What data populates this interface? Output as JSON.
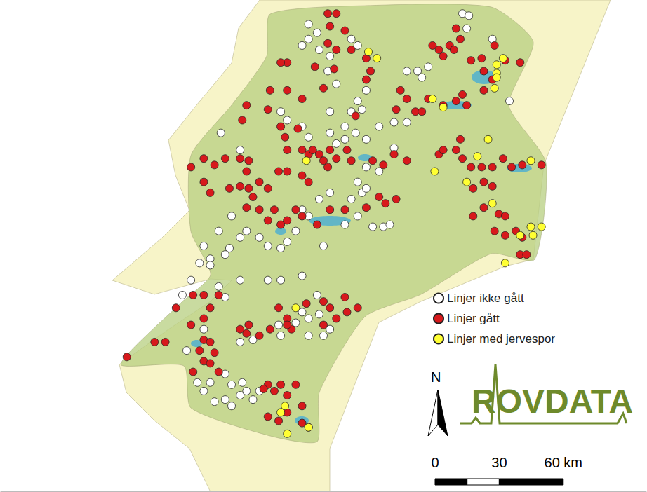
{
  "chart_data": {
    "type": "scatter",
    "marker": "circle",
    "legend": "right",
    "tick_labels": false,
    "xlim": [
      0,
      302
    ],
    "ylim": [
      0,
      230
    ],
    "north_label": "N",
    "logo": "ROVDATA",
    "scale_bar": {
      "ticks": [
        {
          "value": 0,
          "label": "0"
        },
        {
          "value": 30,
          "label": "30"
        },
        {
          "value": 60,
          "label": "60 km"
        }
      ]
    },
    "series": [
      {
        "name": "Linjer ikke gått",
        "color": "#ffffff",
        "values": [
          [
            144,
            219
          ],
          [
            148,
            215
          ],
          [
            141,
            209
          ],
          [
            149,
            207
          ],
          [
            144,
            212
          ],
          [
            164,
            212
          ],
          [
            167,
            209
          ],
          [
            154,
            204
          ],
          [
            153,
            197
          ],
          [
            157,
            191
          ],
          [
            171,
            188
          ],
          [
            167,
            183
          ],
          [
            169,
            179
          ],
          [
            164,
            178
          ],
          [
            154,
            178
          ],
          [
            161,
            171
          ],
          [
            166,
            168
          ],
          [
            161,
            165
          ],
          [
            171,
            165
          ],
          [
            177,
            171
          ],
          [
            184,
            173
          ],
          [
            190,
            173
          ],
          [
            184,
            161
          ],
          [
            177,
            150
          ],
          [
            171,
            152
          ],
          [
            167,
            145
          ],
          [
            169,
            140
          ],
          [
            164,
            137
          ],
          [
            154,
            140
          ],
          [
            149,
            137
          ],
          [
            141,
            132
          ],
          [
            144,
            129
          ],
          [
            138,
            122
          ],
          [
            134,
            117
          ],
          [
            131,
            114
          ],
          [
            125,
            115
          ],
          [
            121,
            119
          ],
          [
            115,
            122
          ],
          [
            112,
            119
          ],
          [
            107,
            114
          ],
          [
            105,
            111
          ],
          [
            98,
            109
          ],
          [
            93,
            107
          ],
          [
            98,
            106
          ],
          [
            108,
            129
          ],
          [
            102,
            122
          ],
          [
            95,
            115
          ],
          [
            131,
            99
          ],
          [
            125,
            99
          ],
          [
            112,
            99
          ],
          [
            105,
            91
          ],
          [
            102,
            96
          ],
          [
            89,
            99
          ],
          [
            85,
            92
          ],
          [
            141,
            101
          ],
          [
            148,
            92
          ],
          [
            141,
            84
          ],
          [
            138,
            79
          ],
          [
            144,
            81
          ],
          [
            149,
            83
          ],
          [
            154,
            76
          ],
          [
            151,
            73
          ],
          [
            144,
            73
          ],
          [
            131,
            73
          ],
          [
            130,
            78
          ],
          [
            118,
            71
          ],
          [
            112,
            70
          ],
          [
            95,
            76
          ],
          [
            87,
            66
          ],
          [
            92,
            51
          ],
          [
            98,
            51
          ],
          [
            95,
            47
          ],
          [
            105,
            55
          ],
          [
            108,
            50
          ],
          [
            113,
            51
          ],
          [
            100,
            42
          ],
          [
            105,
            43
          ],
          [
            112,
            45
          ],
          [
            118,
            43
          ],
          [
            121,
            47
          ],
          [
            115,
            47
          ],
          [
            108,
            40
          ],
          [
            151,
            115
          ],
          [
            161,
            125
          ],
          [
            167,
            129
          ],
          [
            174,
            124
          ],
          [
            179,
            124
          ],
          [
            182,
            125
          ],
          [
            190,
            197
          ],
          [
            195,
            197
          ],
          [
            200,
            199
          ],
          [
            197,
            194
          ],
          [
            230,
            212
          ],
          [
            216,
            224
          ],
          [
            219,
            223
          ],
          [
            218,
            217
          ],
          [
            238,
            183
          ],
          [
            131,
            178
          ],
          [
            134,
            174
          ],
          [
            141,
            171
          ],
          [
            144,
            166
          ],
          [
            154,
            168
          ],
          [
            157,
            163
          ],
          [
            171,
            142
          ],
          [
            103,
            168
          ],
          [
            112,
            160
          ]
        ]
      },
      {
        "name": "Linjer gått",
        "color": "#d7191c",
        "values": [
          [
            153,
            224
          ],
          [
            157,
            224
          ],
          [
            154,
            218
          ],
          [
            161,
            216
          ],
          [
            153,
            210
          ],
          [
            157,
            207
          ],
          [
            164,
            207
          ],
          [
            134,
            201
          ],
          [
            131,
            201
          ],
          [
            147,
            199
          ],
          [
            156,
            198
          ],
          [
            171,
            203
          ],
          [
            173,
            197
          ],
          [
            171,
            193
          ],
          [
            151,
            189
          ],
          [
            187,
            188
          ],
          [
            190,
            184
          ],
          [
            185,
            179
          ],
          [
            194,
            178
          ],
          [
            200,
            184
          ],
          [
            197,
            178
          ],
          [
            207,
            181
          ],
          [
            202,
            209
          ],
          [
            205,
            207
          ],
          [
            210,
            209
          ],
          [
            207,
            204
          ],
          [
            213,
            217
          ],
          [
            215,
            212
          ],
          [
            212,
            207
          ],
          [
            220,
            202
          ],
          [
            225,
            203
          ],
          [
            231,
            209
          ],
          [
            236,
            202
          ],
          [
            243,
            201
          ],
          [
            230,
            193
          ],
          [
            226,
            188
          ],
          [
            216,
            186
          ],
          [
            218,
            181
          ],
          [
            213,
            183
          ],
          [
            226,
            197
          ],
          [
            126,
            188
          ],
          [
            125,
            179
          ],
          [
            134,
            188
          ],
          [
            141,
            184
          ],
          [
            131,
            171
          ],
          [
            133,
            166
          ],
          [
            139,
            170
          ],
          [
            134,
            160
          ],
          [
            141,
            160
          ],
          [
            144,
            158
          ],
          [
            146,
            160
          ],
          [
            149,
            158
          ],
          [
            151,
            155
          ],
          [
            154,
            160
          ],
          [
            157,
            156
          ],
          [
            153,
            152
          ],
          [
            162,
            160
          ],
          [
            164,
            155
          ],
          [
            174,
            155
          ],
          [
            179,
            153
          ],
          [
            184,
            158
          ],
          [
            190,
            155
          ],
          [
            95,
            156
          ],
          [
            100,
            153
          ],
          [
            105,
            156
          ],
          [
            112,
            156
          ],
          [
            116,
            155
          ],
          [
            115,
            150
          ],
          [
            89,
            152
          ],
          [
            95,
            145
          ],
          [
            98,
            140
          ],
          [
            107,
            142
          ],
          [
            112,
            143
          ],
          [
            116,
            142
          ],
          [
            121,
            145
          ],
          [
            125,
            142
          ],
          [
            130,
            150
          ],
          [
            134,
            150
          ],
          [
            141,
            148
          ],
          [
            144,
            145
          ],
          [
            128,
            132
          ],
          [
            131,
            125
          ],
          [
            134,
            127
          ],
          [
            115,
            133
          ],
          [
            118,
            138
          ],
          [
            121,
            132
          ],
          [
            125,
            127
          ],
          [
            138,
            132
          ],
          [
            141,
            129
          ],
          [
            148,
            125
          ],
          [
            154,
            132
          ],
          [
            161,
            132
          ],
          [
            177,
            138
          ],
          [
            180,
            135
          ],
          [
            185,
            137
          ],
          [
            171,
            133
          ],
          [
            205,
            158
          ],
          [
            207,
            160
          ],
          [
            213,
            160
          ],
          [
            215,
            165
          ],
          [
            216,
            156
          ],
          [
            220,
            152
          ],
          [
            225,
            152
          ],
          [
            230,
            152
          ],
          [
            235,
            156
          ],
          [
            239,
            152
          ],
          [
            244,
            153
          ],
          [
            253,
            153
          ],
          [
            226,
            145
          ],
          [
            230,
            143
          ],
          [
            221,
            142
          ],
          [
            226,
            133
          ],
          [
            221,
            129
          ],
          [
            233,
            130
          ],
          [
            236,
            129
          ],
          [
            231,
            122
          ],
          [
            236,
            120
          ],
          [
            241,
            122
          ],
          [
            244,
            119
          ],
          [
            243,
            111
          ],
          [
            246,
            111
          ],
          [
            95,
            92
          ],
          [
            90,
            92
          ],
          [
            82,
            86
          ],
          [
            98,
            86
          ],
          [
            95,
            81
          ],
          [
            89,
            78
          ],
          [
            102,
            92
          ],
          [
            130,
            86
          ],
          [
            134,
            81
          ],
          [
            136,
            76
          ],
          [
            143,
            88
          ],
          [
            151,
            89
          ],
          [
            161,
            91
          ],
          [
            167,
            86
          ],
          [
            162,
            84
          ],
          [
            154,
            86
          ],
          [
            157,
            81
          ],
          [
            151,
            78
          ],
          [
            112,
            76
          ],
          [
            116,
            78
          ],
          [
            115,
            74
          ],
          [
            121,
            73
          ],
          [
            126,
            76
          ],
          [
            134,
            78
          ],
          [
            59,
            63
          ],
          [
            72,
            70
          ],
          [
            77,
            70
          ],
          [
            95,
            71
          ],
          [
            98,
            70
          ],
          [
            93,
            66
          ],
          [
            100,
            65
          ],
          [
            95,
            61
          ],
          [
            98,
            60
          ],
          [
            90,
            56
          ],
          [
            102,
            56
          ],
          [
            125,
            50
          ],
          [
            123,
            48
          ],
          [
            128,
            47
          ],
          [
            131,
            50
          ],
          [
            138,
            50
          ],
          [
            134,
            45
          ],
          [
            141,
            40
          ],
          [
            134,
            37
          ],
          [
            125,
            35
          ],
          [
            130,
            33
          ],
          [
            141,
            32
          ],
          [
            144,
            30
          ],
          [
            113,
            174
          ],
          [
            115,
            181
          ],
          [
            166,
            176
          ]
        ]
      },
      {
        "name": "Linjer med jervespor",
        "color": "#ffff33",
        "values": [
          [
            172,
            206
          ],
          [
            176,
            203
          ],
          [
            232,
            200
          ],
          [
            232,
            196
          ],
          [
            232,
            194
          ],
          [
            235,
            203
          ],
          [
            231,
            189
          ],
          [
            202,
            184
          ],
          [
            207,
            180
          ],
          [
            228,
            165
          ],
          [
            223,
            157
          ],
          [
            248,
            155
          ],
          [
            203,
            150
          ],
          [
            218,
            145
          ],
          [
            230,
            135
          ],
          [
            243,
            120
          ],
          [
            248,
            124
          ],
          [
            253,
            124
          ],
          [
            249,
            120
          ],
          [
            236,
            107
          ],
          [
            143,
            155
          ],
          [
            138,
            86
          ],
          [
            133,
            40
          ],
          [
            131,
            37
          ],
          [
            134,
            27
          ],
          [
            144,
            30
          ]
        ]
      }
    ]
  }
}
